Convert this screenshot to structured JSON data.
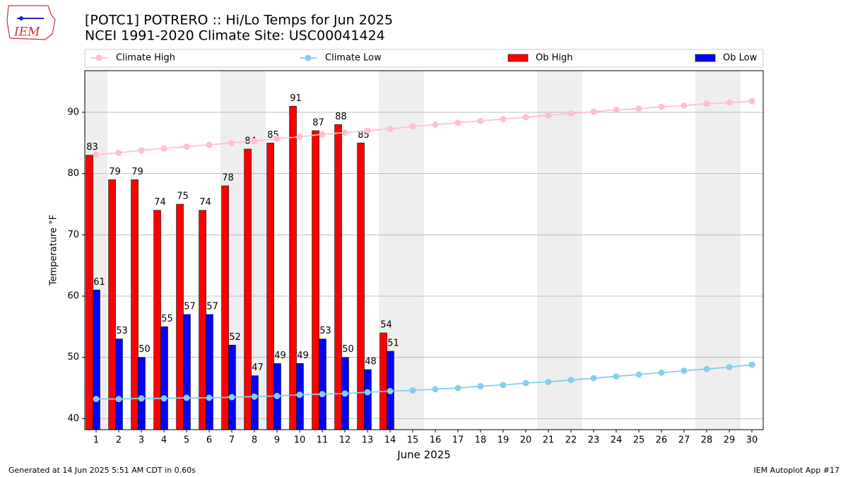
{
  "logo_text": "IEM",
  "footer_left": "Generated at 14 Jun 2025 5:51 AM CDT in 0.60s",
  "footer_right": "IEM Autoplot App #17",
  "chart_data": {
    "type": "bar",
    "title": "[POTC1] POTRERO :: Hi/Lo Temps for Jun 2025",
    "subtitle": "NCEI 1991-2020 Climate Site: USC00041424",
    "xlabel": "June 2025",
    "ylabel": "Temperature °F",
    "x": [
      1,
      2,
      3,
      4,
      5,
      6,
      7,
      8,
      9,
      10,
      11,
      12,
      13,
      14,
      15,
      16,
      17,
      18,
      19,
      20,
      21,
      22,
      23,
      24,
      25,
      26,
      27,
      28,
      29,
      30
    ],
    "xlim": [
      0.5,
      30.5
    ],
    "xticks": [
      1,
      2,
      3,
      4,
      5,
      6,
      7,
      8,
      9,
      10,
      11,
      12,
      13,
      14,
      15,
      16,
      17,
      18,
      19,
      20,
      21,
      22,
      23,
      24,
      25,
      26,
      27,
      28,
      29,
      30
    ],
    "ylim": [
      38.2,
      96.8
    ],
    "yticks": [
      40,
      50,
      60,
      70,
      80,
      90
    ],
    "grid": true,
    "shaded_ranges": [
      [
        0.5,
        1.5
      ],
      [
        6.5,
        8.5
      ],
      [
        13.5,
        15.5
      ],
      [
        20.5,
        22.5
      ],
      [
        27.5,
        29.5
      ]
    ],
    "shade_color": "#eeeeee",
    "legend": "top",
    "series": [
      {
        "name": "Climate High",
        "kind": "line",
        "color": "#ffc0cb",
        "values": [
          83.1,
          83.4,
          83.8,
          84.1,
          84.4,
          84.7,
          85.0,
          85.3,
          85.7,
          86.0,
          86.4,
          86.7,
          87.0,
          87.3,
          87.7,
          88.0,
          88.3,
          88.6,
          88.9,
          89.2,
          89.5,
          89.8,
          90.1,
          90.4,
          90.6,
          90.9,
          91.1,
          91.4,
          91.6,
          91.8
        ]
      },
      {
        "name": "Climate Low",
        "kind": "line",
        "color": "#87ceeb",
        "values": [
          43.2,
          43.2,
          43.3,
          43.3,
          43.4,
          43.4,
          43.5,
          43.6,
          43.7,
          43.9,
          44.0,
          44.1,
          44.3,
          44.5,
          44.6,
          44.8,
          45.0,
          45.3,
          45.5,
          45.8,
          46.0,
          46.3,
          46.6,
          46.9,
          47.2,
          47.5,
          47.8,
          48.1,
          48.4,
          48.8
        ]
      },
      {
        "name": "Ob High",
        "kind": "bar",
        "color": "#ff0000",
        "offset": [
          -0.45,
          -0.14
        ],
        "values": [
          83,
          79,
          79,
          74,
          75,
          74,
          78,
          84,
          85,
          91,
          87,
          88,
          85,
          54,
          null,
          null,
          null,
          null,
          null,
          null,
          null,
          null,
          null,
          null,
          null,
          null,
          null,
          null,
          null,
          null
        ]
      },
      {
        "name": "Ob Low",
        "kind": "bar",
        "color": "#0000ff",
        "offset": [
          -0.14,
          0.17
        ],
        "values": [
          61,
          53,
          50,
          55,
          57,
          57,
          52,
          47,
          49,
          49,
          53,
          50,
          48,
          51,
          null,
          null,
          null,
          null,
          null,
          null,
          null,
          null,
          null,
          null,
          null,
          null,
          null,
          null,
          null,
          null
        ]
      }
    ]
  }
}
